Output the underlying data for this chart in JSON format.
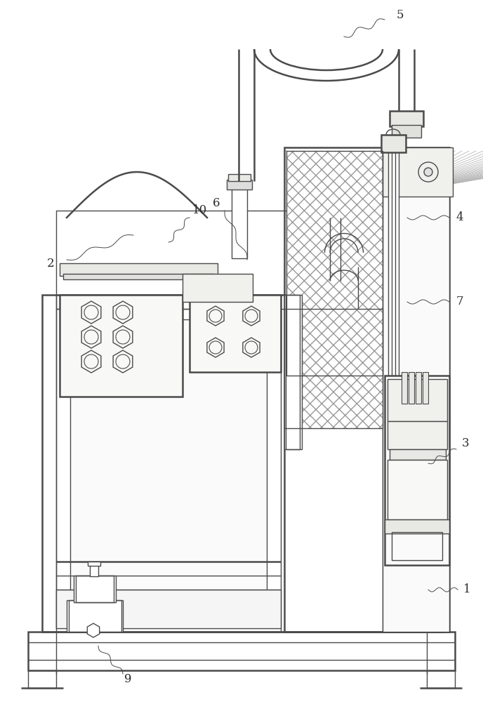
{
  "bg_color": "#ffffff",
  "line_color": "#4a4a4a",
  "lw": 1.0,
  "fig_width": 6.88,
  "fig_height": 10.0
}
